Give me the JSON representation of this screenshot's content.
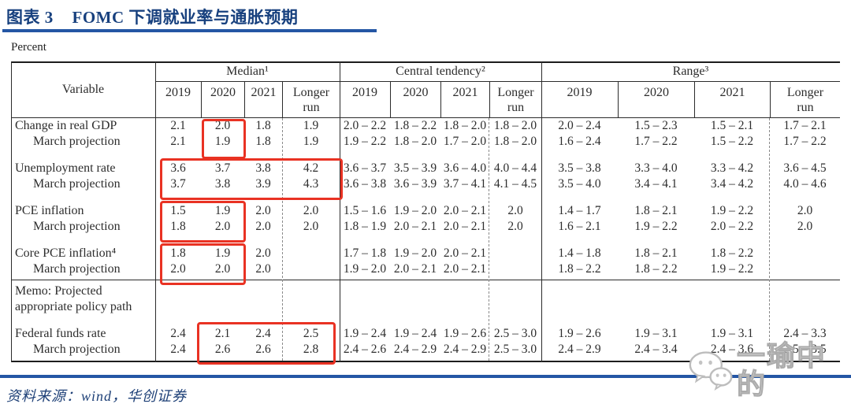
{
  "header": {
    "figure_label": "图表 3",
    "title": "FOMC 下调就业率与通胀预期"
  },
  "table": {
    "unit": "Percent",
    "variable_header": "Variable",
    "sections": [
      {
        "title": "Median¹",
        "years": [
          "2019",
          "2020",
          "2021",
          "Longer\nrun"
        ]
      },
      {
        "title": "Central tendency²",
        "years": [
          "2019",
          "2020",
          "2021",
          "Longer\nrun"
        ]
      },
      {
        "title": "Range³",
        "years": [
          "2019",
          "2020",
          "2021",
          "Longer\nrun"
        ]
      }
    ],
    "rows": [
      {
        "label": "Change in real GDP",
        "indent": false,
        "cells": [
          "2.1",
          "2.0",
          "1.8",
          "1.9",
          "2.0 – 2.2",
          "1.8 – 2.2",
          "1.8 – 2.0",
          "1.8 – 2.0",
          "2.0 – 2.4",
          "1.5 – 2.3",
          "1.5 – 2.1",
          "1.7 – 2.1"
        ]
      },
      {
        "label": "March projection",
        "indent": true,
        "cells": [
          "2.1",
          "1.9",
          "1.8",
          "1.9",
          "1.9 – 2.2",
          "1.8 – 2.0",
          "1.7 – 2.0",
          "1.8 – 2.0",
          "1.6 – 2.4",
          "1.7 – 2.2",
          "1.5 – 2.2",
          "1.7 – 2.2"
        ]
      },
      {
        "label": "Unemployment rate",
        "indent": false,
        "gap_before": true,
        "cells": [
          "3.6",
          "3.7",
          "3.8",
          "4.2",
          "3.6 – 3.7",
          "3.5 – 3.9",
          "3.6 – 4.0",
          "4.0 – 4.4",
          "3.5 – 3.8",
          "3.3 – 4.0",
          "3.3 – 4.2",
          "3.6 – 4.5"
        ]
      },
      {
        "label": "March projection",
        "indent": true,
        "cells": [
          "3.7",
          "3.8",
          "3.9",
          "4.3",
          "3.6 – 3.8",
          "3.6 – 3.9",
          "3.7 – 4.1",
          "4.1 – 4.5",
          "3.5 – 4.0",
          "3.4 – 4.1",
          "3.4 – 4.2",
          "4.0 – 4.6"
        ]
      },
      {
        "label": "PCE inflation",
        "indent": false,
        "gap_before": true,
        "cells": [
          "1.5",
          "1.9",
          "2.0",
          "2.0",
          "1.5 – 1.6",
          "1.9 – 2.0",
          "2.0 – 2.1",
          "2.0",
          "1.4 – 1.7",
          "1.8 – 2.1",
          "1.9 – 2.2",
          "2.0"
        ]
      },
      {
        "label": "March projection",
        "indent": true,
        "cells": [
          "1.8",
          "2.0",
          "2.0",
          "2.0",
          "1.8 – 1.9",
          "2.0 – 2.1",
          "2.0 – 2.1",
          "2.0",
          "1.6 – 2.1",
          "1.9 – 2.2",
          "2.0 – 2.2",
          "2.0"
        ]
      },
      {
        "label": "Core PCE inflation⁴",
        "indent": false,
        "gap_before": true,
        "cells": [
          "1.8",
          "1.9",
          "2.0",
          "",
          "1.7 – 1.8",
          "1.9 – 2.0",
          "2.0 – 2.1",
          "",
          "1.4 – 1.8",
          "1.8 – 2.1",
          "1.8 – 2.2",
          ""
        ]
      },
      {
        "label": "March projection",
        "indent": true,
        "cells": [
          "2.0",
          "2.0",
          "2.0",
          "",
          "1.9 – 2.0",
          "2.0 – 2.1",
          "2.0 – 2.1",
          "",
          "1.8 – 2.2",
          "1.8 – 2.2",
          "1.9 – 2.2",
          ""
        ]
      },
      {
        "label": "Memo: Projected",
        "indent": false,
        "memo": true,
        "cells": [
          "",
          "",
          "",
          "",
          "",
          "",
          "",
          "",
          "",
          "",
          "",
          ""
        ]
      },
      {
        "label": "appropriate policy path",
        "indent": false,
        "cells": [
          "",
          "",
          "",
          "",
          "",
          "",
          "",
          "",
          "",
          "",
          "",
          ""
        ]
      },
      {
        "label": "Federal funds rate",
        "indent": false,
        "gap_before": true,
        "cells": [
          "2.4",
          "2.1",
          "2.4",
          "2.5",
          "1.9 – 2.4",
          "1.9 – 2.4",
          "1.9 – 2.6",
          "2.5 – 3.0",
          "1.9 – 2.6",
          "1.9 – 3.1",
          "1.9 – 3.1",
          "2.4 – 3.3"
        ]
      },
      {
        "label": "March projection",
        "indent": true,
        "cells": [
          "2.4",
          "2.6",
          "2.6",
          "2.8",
          "2.4 – 2.6",
          "2.4 – 2.9",
          "2.4 – 2.9",
          "2.5 – 3.0",
          "2.4 – 2.9",
          "2.4 – 3.4",
          "2.4 – 3.6",
          "2.5 – 3.5"
        ]
      }
    ]
  },
  "highlights": {
    "color": "#e93223",
    "boxes": [
      "median-2020-change-in-real-gdp",
      "median-all-unemployment-rate",
      "median-2019-2020-pce-inflation",
      "median-2019-2020-core-pce-inflation",
      "median-2020-2021-longer-run-federal-funds-rate"
    ]
  },
  "footer": {
    "source": "资料来源：wind，华创证券"
  },
  "watermark": {
    "text": "一瑜中的",
    "icon": "wechat-icon"
  },
  "colors": {
    "title_navy": "#17407e",
    "rule_blue": "#2456a4",
    "highlight_red": "#e93223"
  }
}
